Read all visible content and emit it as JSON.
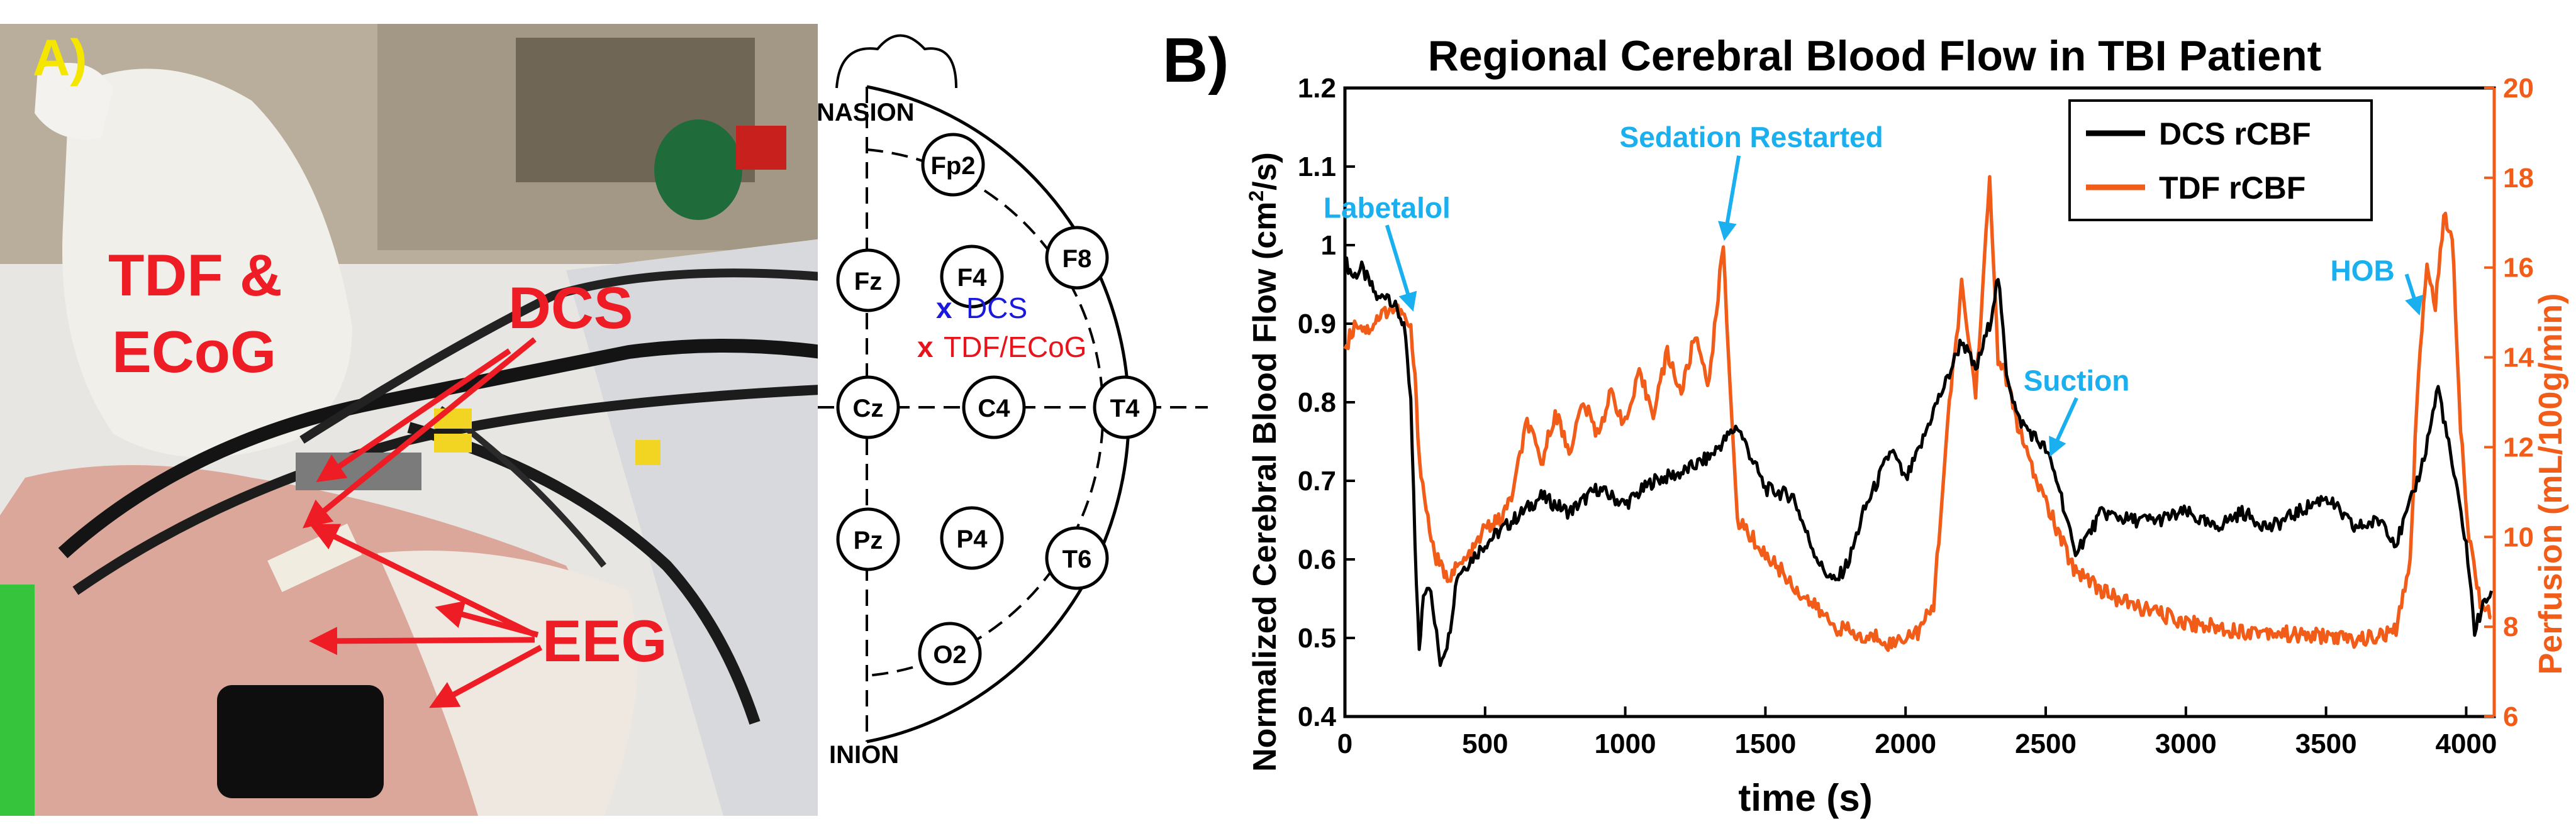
{
  "panel_a": {
    "label": "A)",
    "photo_labels": {
      "tdf_line1": "TDF &",
      "tdf_line2": "ECoG",
      "dcs": "DCS",
      "eeg": "EEG"
    },
    "montage": {
      "nasion": "NASION",
      "inion": "INION",
      "electrodes": [
        "Fp2",
        "Fz",
        "F4",
        "F8",
        "Cz",
        "C4",
        "T4",
        "Pz",
        "P4",
        "T6",
        "O2"
      ],
      "legend": [
        {
          "marker": "x",
          "text": "DCS",
          "color": "#1a1adc"
        },
        {
          "marker": "x",
          "text": "TDF/ECoG",
          "color": "#e8141c"
        }
      ]
    }
  },
  "panel_b": {
    "label": "B)"
  },
  "chart_data": {
    "type": "line",
    "title": "Regional Cerebral Blood Flow in TBI Patient",
    "xlabel": "time (s)",
    "ylabel_left": "Normalized Cerebral Blood Flow (cm²/s)",
    "ylabel_left_base": "Normalized Cerebral Blood Flow (cm",
    "ylabel_left_sup": "2",
    "ylabel_left_tail": "/s)",
    "ylabel_right": "Perfusion (mL/100g/min)",
    "xlim": [
      0,
      4100
    ],
    "ylim_left": [
      0.4,
      1.2
    ],
    "ylim_right": [
      6,
      20
    ],
    "xticks": [
      0,
      500,
      1000,
      1500,
      2000,
      2500,
      3000,
      3500,
      4000
    ],
    "yticks_left": [
      "0.4",
      "0.5",
      "0.6",
      "0.7",
      "0.8",
      "0.9",
      "1",
      "1.1",
      "1.2"
    ],
    "yticks_right": [
      "6",
      "8",
      "10",
      "12",
      "14",
      "16",
      "18",
      "20"
    ],
    "legend_position": "top-right",
    "series": [
      {
        "name": "DCS rCBF",
        "axis": "left",
        "color": "#000000",
        "points": [
          [
            0,
            0.98
          ],
          [
            30,
            0.96
          ],
          [
            60,
            0.97
          ],
          [
            90,
            0.95
          ],
          [
            120,
            0.93
          ],
          [
            150,
            0.94
          ],
          [
            180,
            0.92
          ],
          [
            210,
            0.9
          ],
          [
            235,
            0.8
          ],
          [
            250,
            0.62
          ],
          [
            265,
            0.48
          ],
          [
            280,
            0.56
          ],
          [
            300,
            0.57
          ],
          [
            320,
            0.52
          ],
          [
            340,
            0.47
          ],
          [
            370,
            0.5
          ],
          [
            400,
            0.58
          ],
          [
            450,
            0.6
          ],
          [
            500,
            0.62
          ],
          [
            600,
            0.65
          ],
          [
            700,
            0.68
          ],
          [
            800,
            0.66
          ],
          [
            900,
            0.69
          ],
          [
            1000,
            0.67
          ],
          [
            1100,
            0.7
          ],
          [
            1200,
            0.71
          ],
          [
            1300,
            0.73
          ],
          [
            1400,
            0.77
          ],
          [
            1450,
            0.73
          ],
          [
            1500,
            0.69
          ],
          [
            1600,
            0.68
          ],
          [
            1650,
            0.63
          ],
          [
            1700,
            0.59
          ],
          [
            1750,
            0.57
          ],
          [
            1800,
            0.6
          ],
          [
            1850,
            0.66
          ],
          [
            1900,
            0.7
          ],
          [
            1950,
            0.74
          ],
          [
            2000,
            0.7
          ],
          [
            2050,
            0.74
          ],
          [
            2100,
            0.79
          ],
          [
            2150,
            0.83
          ],
          [
            2200,
            0.88
          ],
          [
            2250,
            0.84
          ],
          [
            2300,
            0.9
          ],
          [
            2330,
            0.96
          ],
          [
            2360,
            0.84
          ],
          [
            2400,
            0.78
          ],
          [
            2450,
            0.76
          ],
          [
            2500,
            0.74
          ],
          [
            2550,
            0.69
          ],
          [
            2600,
            0.61
          ],
          [
            2650,
            0.63
          ],
          [
            2700,
            0.66
          ],
          [
            2800,
            0.65
          ],
          [
            2900,
            0.65
          ],
          [
            3000,
            0.66
          ],
          [
            3100,
            0.64
          ],
          [
            3200,
            0.66
          ],
          [
            3300,
            0.64
          ],
          [
            3400,
            0.66
          ],
          [
            3500,
            0.68
          ],
          [
            3600,
            0.64
          ],
          [
            3700,
            0.65
          ],
          [
            3750,
            0.62
          ],
          [
            3800,
            0.67
          ],
          [
            3850,
            0.73
          ],
          [
            3900,
            0.82
          ],
          [
            3950,
            0.72
          ],
          [
            4000,
            0.62
          ],
          [
            4030,
            0.51
          ],
          [
            4060,
            0.54
          ],
          [
            4090,
            0.56
          ]
        ]
      },
      {
        "name": "TDF rCBF",
        "axis": "right",
        "color": "#f25c19",
        "points": [
          [
            0,
            14.2
          ],
          [
            40,
            14.8
          ],
          [
            80,
            14.6
          ],
          [
            120,
            14.9
          ],
          [
            160,
            15.1
          ],
          [
            200,
            15.0
          ],
          [
            235,
            14.6
          ],
          [
            250,
            13.5
          ],
          [
            265,
            11.8
          ],
          [
            290,
            10.6
          ],
          [
            320,
            9.6
          ],
          [
            360,
            9.1
          ],
          [
            400,
            9.3
          ],
          [
            450,
            9.6
          ],
          [
            500,
            10.2
          ],
          [
            560,
            10.4
          ],
          [
            600,
            11.0
          ],
          [
            650,
            12.6
          ],
          [
            700,
            11.6
          ],
          [
            750,
            12.8
          ],
          [
            800,
            11.9
          ],
          [
            850,
            13.0
          ],
          [
            900,
            12.3
          ],
          [
            950,
            13.2
          ],
          [
            1000,
            12.5
          ],
          [
            1050,
            13.6
          ],
          [
            1100,
            12.8
          ],
          [
            1150,
            14.1
          ],
          [
            1200,
            13.2
          ],
          [
            1250,
            14.5
          ],
          [
            1300,
            13.4
          ],
          [
            1350,
            16.6
          ],
          [
            1380,
            12.5
          ],
          [
            1400,
            10.4
          ],
          [
            1450,
            10.0
          ],
          [
            1500,
            9.6
          ],
          [
            1550,
            9.3
          ],
          [
            1600,
            8.9
          ],
          [
            1650,
            8.6
          ],
          [
            1700,
            8.3
          ],
          [
            1750,
            8.0
          ],
          [
            1800,
            7.9
          ],
          [
            1850,
            7.7
          ],
          [
            1900,
            7.8
          ],
          [
            1950,
            7.6
          ],
          [
            2000,
            7.8
          ],
          [
            2050,
            7.9
          ],
          [
            2100,
            8.5
          ],
          [
            2150,
            12.5
          ],
          [
            2200,
            15.6
          ],
          [
            2250,
            13.2
          ],
          [
            2300,
            17.9
          ],
          [
            2330,
            14.0
          ],
          [
            2360,
            13.5
          ],
          [
            2400,
            12.5
          ],
          [
            2450,
            11.5
          ],
          [
            2500,
            10.8
          ],
          [
            2550,
            10.0
          ],
          [
            2600,
            9.3
          ],
          [
            2650,
            9.1
          ],
          [
            2700,
            8.8
          ],
          [
            2800,
            8.5
          ],
          [
            2900,
            8.3
          ],
          [
            3000,
            8.1
          ],
          [
            3100,
            8.0
          ],
          [
            3200,
            7.9
          ],
          [
            3300,
            7.9
          ],
          [
            3400,
            7.8
          ],
          [
            3500,
            7.8
          ],
          [
            3600,
            7.7
          ],
          [
            3700,
            7.8
          ],
          [
            3750,
            7.9
          ],
          [
            3800,
            9.5
          ],
          [
            3830,
            13.8
          ],
          [
            3860,
            16.0
          ],
          [
            3890,
            15.2
          ],
          [
            3920,
            17.1
          ],
          [
            3950,
            16.8
          ],
          [
            3980,
            12.5
          ],
          [
            4010,
            10.0
          ],
          [
            4050,
            8.6
          ],
          [
            4090,
            8.2
          ]
        ]
      }
    ],
    "annotations": [
      {
        "text": "Labetalol",
        "x": 240,
        "y_left": 0.92,
        "label_x": 150,
        "label_y_left": 1.035,
        "anchor": "middle"
      },
      {
        "text": "Sedation Restarted",
        "x": 1355,
        "y_left": 1.01,
        "label_x": 1450,
        "label_y_left": 1.125,
        "anchor": "middle"
      },
      {
        "text": "Suction",
        "x": 2520,
        "y_left": 0.735,
        "label_x": 2610,
        "label_y_left": 0.815,
        "anchor": "middle"
      },
      {
        "text": "HOB",
        "x": 3830,
        "y_left": 0.915,
        "label_x": 3630,
        "label_y_left": 0.955,
        "anchor": "middle"
      }
    ],
    "annotation_color": "#1ab0f0"
  }
}
